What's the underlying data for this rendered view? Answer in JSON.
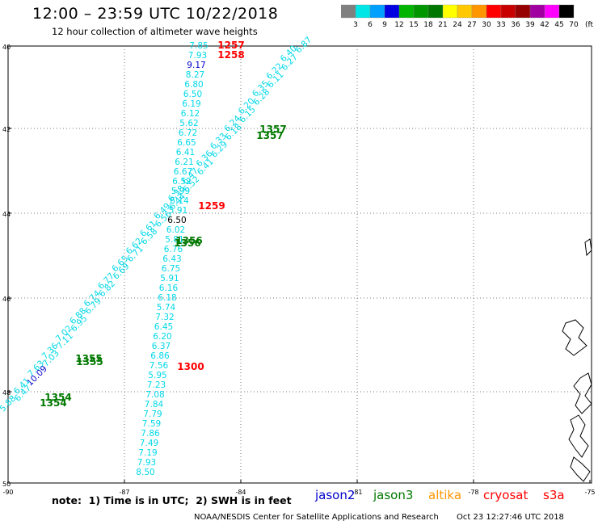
{
  "header": {
    "title": "12:00 – 23:59 UTC 10/22/2018",
    "subtitle": "12 hour collection of altimeter wave heights"
  },
  "colorbar": {
    "labels": [
      "3",
      "6",
      "9",
      "12",
      "15",
      "18",
      "21",
      "24",
      "27",
      "30",
      "33",
      "36",
      "39",
      "42",
      "45",
      "70"
    ],
    "unit": "(ft)",
    "colors": [
      "#808080",
      "#00e6e6",
      "#00a0ff",
      "#0000e0",
      "#00b400",
      "#009600",
      "#007800",
      "#ffff00",
      "#ffc800",
      "#ff9600",
      "#ff0000",
      "#c80000",
      "#960000",
      "#a000a0",
      "#ff00ff",
      "#000000"
    ]
  },
  "axes": {
    "lat_ticks": [
      "40",
      "42",
      "44",
      "46",
      "48",
      "50"
    ],
    "lon_ticks": [
      "-90",
      "-87",
      "-84",
      "-81",
      "-78",
      "-75"
    ]
  },
  "tracks": {
    "track_a_swh": [
      "7.85",
      "7.93",
      "9.17",
      "8.27",
      "6.80",
      "6.50",
      "6.19",
      "6.12",
      "5.62",
      "6.72",
      "6.65",
      "6.41",
      "6.21",
      "6.67",
      "6.52",
      "5.99",
      "6.14",
      "5.91",
      "6.50",
      "6.02",
      "5.81",
      "6.76",
      "6.43",
      "6.75",
      "5.91",
      "6.16",
      "6.18",
      "5.74",
      "7.32",
      "6.45",
      "6.20",
      "6.37",
      "6.86",
      "7.56",
      "5.95",
      "7.23",
      "7.08",
      "7.84",
      "7.79",
      "7.59",
      "7.86",
      "7.49",
      "7.19",
      "7.93",
      "8.50"
    ],
    "track_a_times": [
      "1257",
      "1258",
      "1259",
      "1300"
    ],
    "track_b_swh": [
      "6.87",
      "6.40",
      "6.27",
      "6.22",
      "6.11",
      "6.35",
      "6.28",
      "6.20",
      "6.15",
      "6.24",
      "6.18",
      "6.33",
      "6.29",
      "6.36",
      "6.41",
      "6.47",
      "6.52",
      "6.38",
      "6.44",
      "6.49",
      "6.56",
      "6.61",
      "6.58",
      "6.62",
      "6.71",
      "6.65",
      "6.69",
      "6.77",
      "6.82",
      "6.74",
      "6.79",
      "6.88",
      "6.95",
      "7.02",
      "7.11",
      "7.36",
      "7.03",
      "7.63",
      "10.09",
      "6.41",
      "6.47",
      "5.88"
    ],
    "track_b_times": [
      "1357",
      "1357",
      "1356",
      "1356",
      "1355",
      "1355",
      "1354",
      "1354"
    ]
  },
  "legend": {
    "note": "note:  1) Time is in UTC;  2) SWH is in feet",
    "satellites": [
      {
        "name": "jason2",
        "color": "#0000cc"
      },
      {
        "name": "jason3",
        "color": "#007800"
      },
      {
        "name": "altika",
        "color": "#ff9600"
      },
      {
        "name": "cryosat",
        "color": "#ff0000"
      },
      {
        "name": "s3a",
        "color": "#ff0000"
      }
    ]
  },
  "footer": {
    "credit": "NOAA/NESDIS Center for Satellite Applications and Research",
    "timestamp": "Oct 23 12:27:46 UTC 2018"
  }
}
